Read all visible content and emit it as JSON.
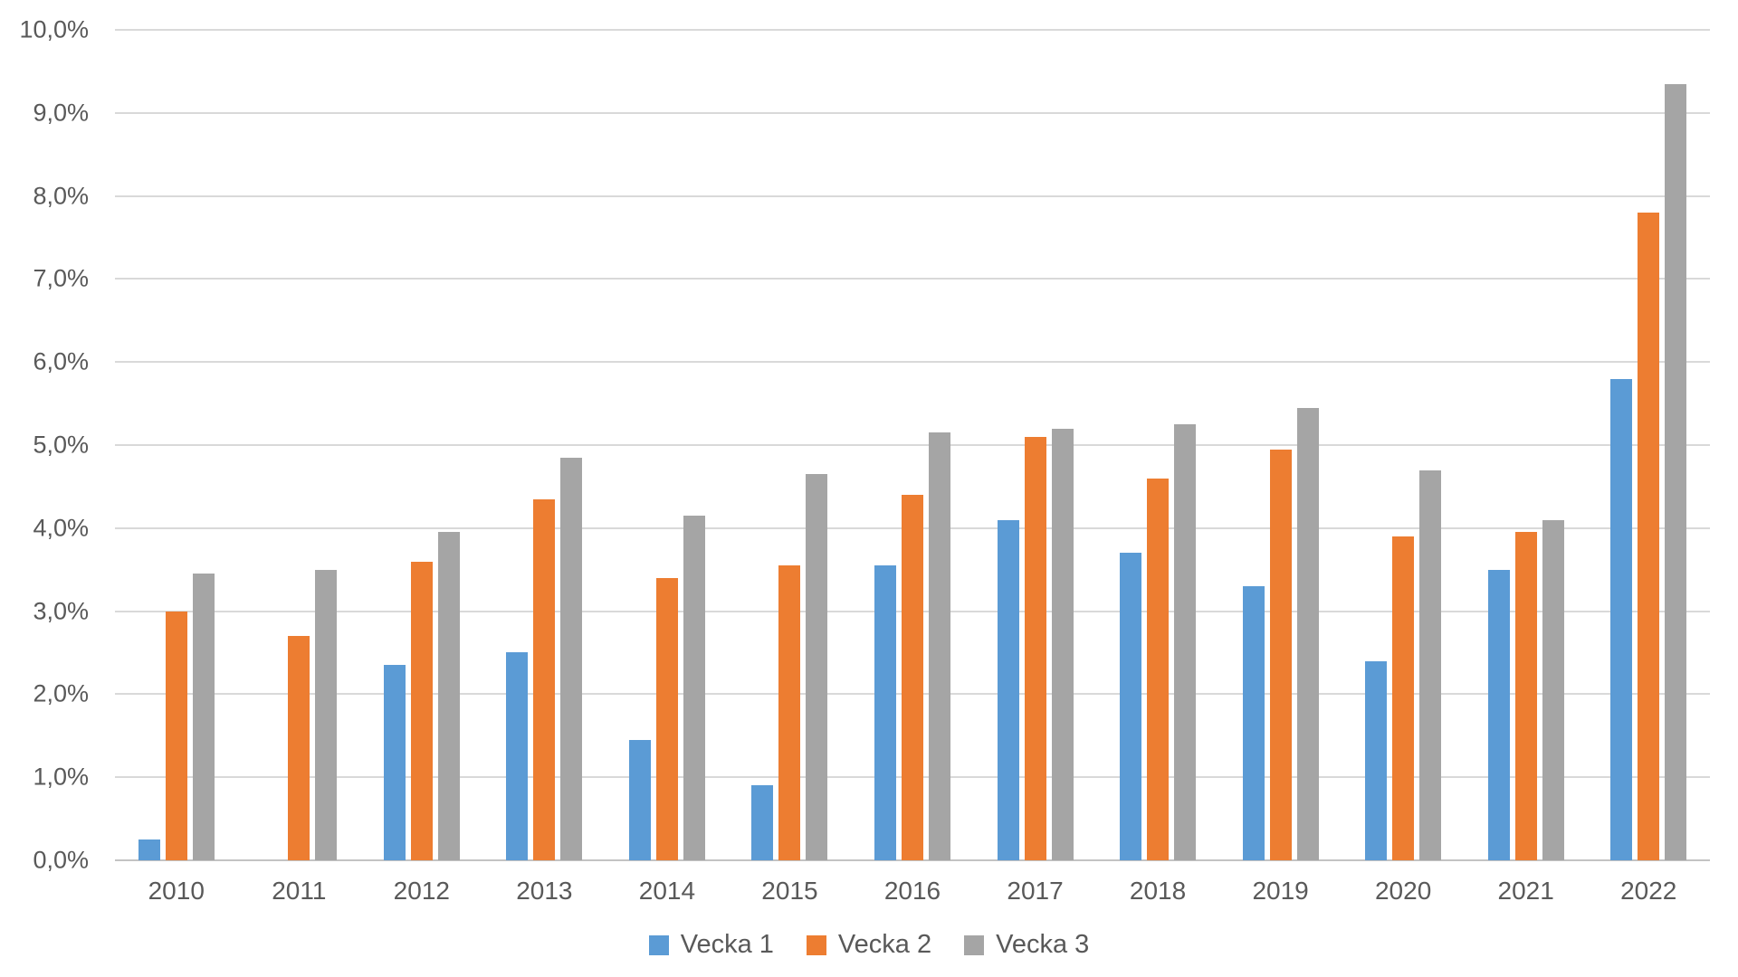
{
  "chart_data": {
    "type": "bar",
    "title": "",
    "xlabel": "",
    "ylabel": "",
    "ylim": [
      0,
      10
    ],
    "grid": true,
    "legend_position": "bottom",
    "value_format": "percent-comma-decimal",
    "y_ticks": [
      "10,0%",
      "9,0%",
      "8,0%",
      "7,0%",
      "6,0%",
      "5,0%",
      "4,0%",
      "3,0%",
      "2,0%",
      "1,0%",
      "0,0%"
    ],
    "categories": [
      "2010",
      "2011",
      "2012",
      "2013",
      "2014",
      "2015",
      "2016",
      "2017",
      "2018",
      "2019",
      "2020",
      "2021",
      "2022"
    ],
    "series": [
      {
        "name": "Vecka 1",
        "color": "#5B9BD5",
        "values": [
          0.25,
          0,
          2.35,
          2.5,
          1.45,
          0.9,
          3.55,
          4.1,
          3.7,
          3.3,
          2.4,
          3.5,
          5.8
        ]
      },
      {
        "name": "Vecka 2",
        "color": "#ED7D31",
        "values": [
          3.0,
          2.7,
          3.6,
          4.35,
          3.4,
          3.55,
          4.4,
          5.1,
          4.6,
          4.95,
          3.9,
          3.95,
          7.8
        ]
      },
      {
        "name": "Vecka 3",
        "color": "#A5A5A5",
        "values": [
          3.45,
          3.5,
          3.95,
          4.85,
          4.15,
          4.65,
          5.15,
          5.2,
          5.25,
          5.45,
          4.7,
          4.1,
          9.35
        ]
      }
    ]
  },
  "colors": {
    "gridline": "#d9d9d9",
    "axis_line": "#c3c3c3",
    "tick_text": "#595959",
    "background": "#ffffff"
  }
}
